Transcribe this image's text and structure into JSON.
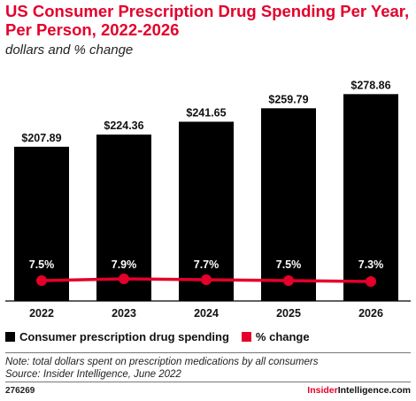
{
  "header": {
    "title": "US Consumer Prescription Drug Spending Per Year, Per Person, 2022-2026",
    "subtitle": "dollars and % change"
  },
  "chart_data": {
    "type": "bar",
    "categories": [
      "2022",
      "2023",
      "2024",
      "2025",
      "2026"
    ],
    "series": [
      {
        "name": "Consumer prescription drug spending",
        "type": "bar",
        "values": [
          207.89,
          224.36,
          241.65,
          259.79,
          278.86
        ],
        "labels": [
          "$207.89",
          "$224.36",
          "$241.65",
          "$259.79",
          "$278.86"
        ],
        "color": "#000000"
      },
      {
        "name": "% change",
        "type": "line",
        "values": [
          7.5,
          7.9,
          7.7,
          7.5,
          7.3
        ],
        "labels": [
          "7.5%",
          "7.9%",
          "7.7%",
          "7.5%",
          "7.3%"
        ],
        "color": "#e4002b"
      }
    ],
    "ylim": [
      0,
      290
    ],
    "grid": false,
    "legend": "bottom-left"
  },
  "legend": {
    "items": [
      {
        "label": "Consumer prescription drug spending",
        "color": "#000000"
      },
      {
        "label": "% change",
        "color": "#e4002b"
      }
    ]
  },
  "footer": {
    "note": "Note: total dollars spent on prescription medications by all consumers",
    "source": "Source: Insider Intelligence, June 2022",
    "chart_id": "276269",
    "brand_part1": "Insider",
    "brand_part2": "Intelligence.com"
  }
}
